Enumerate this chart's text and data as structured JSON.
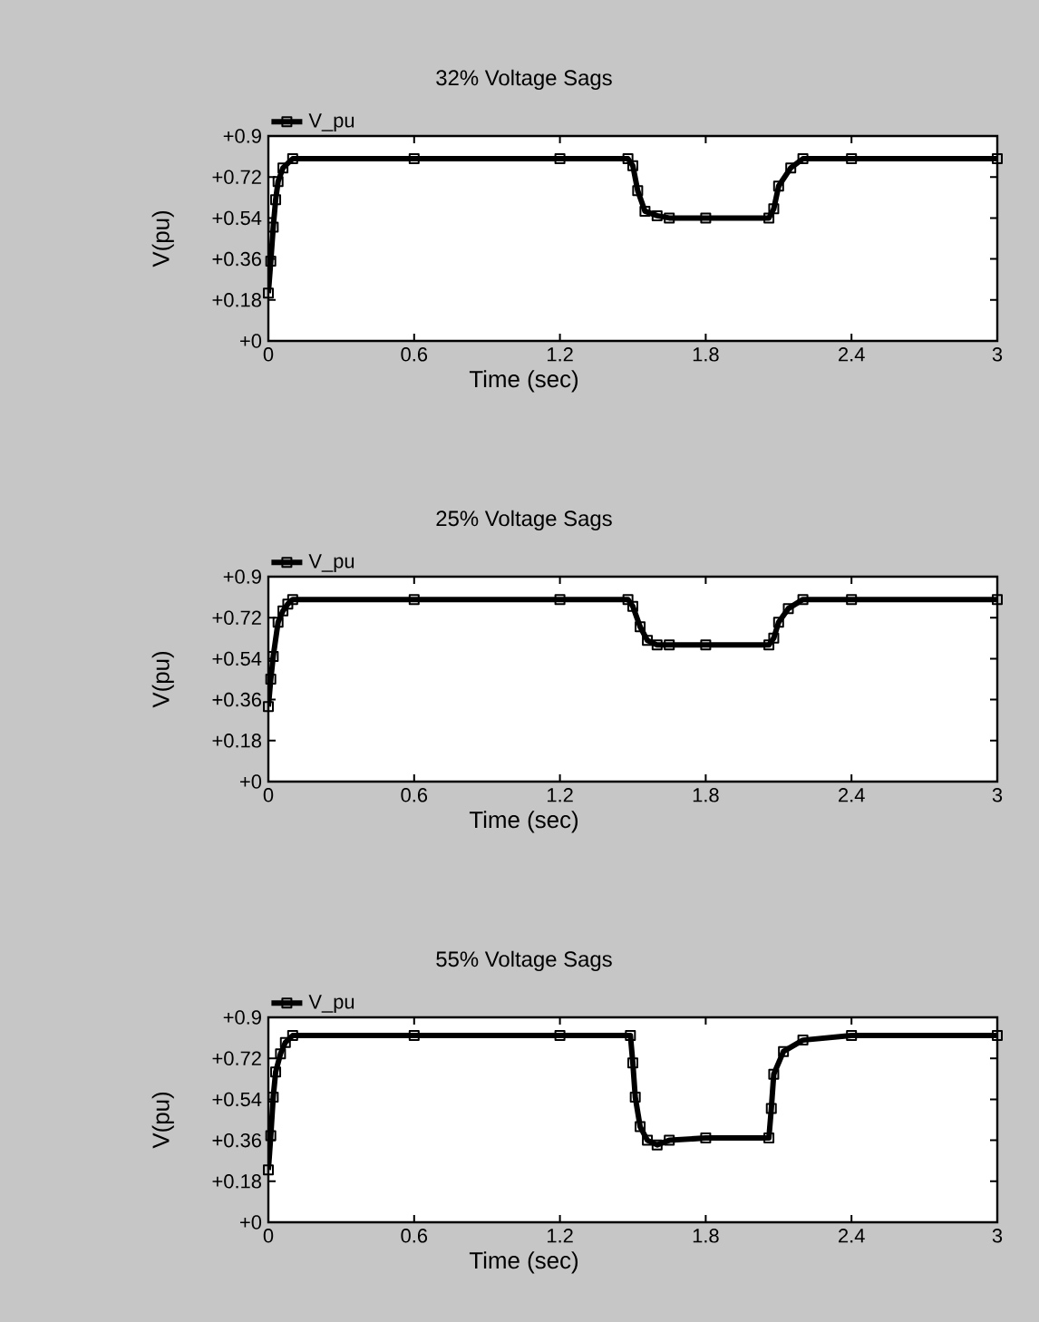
{
  "chart_data": [
    {
      "type": "line",
      "title": "32% Voltage Sags",
      "xlabel": "Time (sec)",
      "ylabel": "V(pu)",
      "xlim": [
        0,
        3
      ],
      "ylim": [
        0,
        0.9
      ],
      "xticks": [
        0,
        0.6,
        1.2,
        1.8,
        2.4,
        3
      ],
      "yticks": [
        {
          "value": 0,
          "label": "+0"
        },
        {
          "value": 0.18,
          "label": "+0.18"
        },
        {
          "value": 0.36,
          "label": "+0.36"
        },
        {
          "value": 0.54,
          "label": "+0.54"
        },
        {
          "value": 0.72,
          "label": "+0.72"
        },
        {
          "value": 0.9,
          "label": "+0.9"
        }
      ],
      "legend": "top left",
      "marker": "square",
      "series": [
        {
          "name": "V_pu",
          "color": "#000000",
          "x": [
            0,
            0.01,
            0.02,
            0.03,
            0.04,
            0.06,
            0.1,
            0.6,
            1.2,
            1.48,
            1.5,
            1.52,
            1.55,
            1.6,
            1.65,
            1.8,
            2.06,
            2.08,
            2.1,
            2.15,
            2.2,
            2.4,
            3
          ],
          "values": [
            0.21,
            0.35,
            0.5,
            0.62,
            0.7,
            0.76,
            0.8,
            0.8,
            0.8,
            0.8,
            0.77,
            0.66,
            0.57,
            0.55,
            0.54,
            0.54,
            0.54,
            0.58,
            0.68,
            0.76,
            0.8,
            0.8,
            0.8
          ]
        }
      ]
    },
    {
      "type": "line",
      "title": "25% Voltage Sags",
      "xlabel": "Time (sec)",
      "ylabel": "V(pu)",
      "xlim": [
        0,
        3
      ],
      "ylim": [
        0,
        0.9
      ],
      "xticks": [
        0,
        0.6,
        1.2,
        1.8,
        2.4,
        3
      ],
      "yticks": [
        {
          "value": 0,
          "label": "+0"
        },
        {
          "value": 0.18,
          "label": "+0.18"
        },
        {
          "value": 0.36,
          "label": "+0.36"
        },
        {
          "value": 0.54,
          "label": "+0.54"
        },
        {
          "value": 0.72,
          "label": "+0.72"
        },
        {
          "value": 0.9,
          "label": "+0.9"
        }
      ],
      "legend": "top left",
      "marker": "square",
      "series": [
        {
          "name": "V_pu",
          "color": "#000000",
          "x": [
            0,
            0.01,
            0.02,
            0.04,
            0.06,
            0.08,
            0.1,
            0.6,
            1.2,
            1.48,
            1.5,
            1.53,
            1.56,
            1.6,
            1.65,
            1.8,
            2.06,
            2.08,
            2.1,
            2.14,
            2.2,
            2.4,
            3
          ],
          "values": [
            0.33,
            0.45,
            0.55,
            0.7,
            0.75,
            0.78,
            0.8,
            0.8,
            0.8,
            0.8,
            0.77,
            0.68,
            0.62,
            0.6,
            0.6,
            0.6,
            0.6,
            0.63,
            0.7,
            0.76,
            0.8,
            0.8,
            0.8
          ]
        }
      ]
    },
    {
      "type": "line",
      "title": "55% Voltage Sags",
      "xlabel": "Time (sec)",
      "ylabel": "V(pu)",
      "xlim": [
        0,
        3
      ],
      "ylim": [
        0,
        0.9
      ],
      "xticks": [
        0,
        0.6,
        1.2,
        1.8,
        2.4,
        3
      ],
      "yticks": [
        {
          "value": 0,
          "label": "+0"
        },
        {
          "value": 0.18,
          "label": "+0.18"
        },
        {
          "value": 0.36,
          "label": "+0.36"
        },
        {
          "value": 0.54,
          "label": "+0.54"
        },
        {
          "value": 0.72,
          "label": "+0.72"
        },
        {
          "value": 0.9,
          "label": "+0.9"
        }
      ],
      "legend": "top left",
      "marker": "square",
      "series": [
        {
          "name": "V_pu",
          "color": "#000000",
          "x": [
            0,
            0.01,
            0.02,
            0.03,
            0.05,
            0.07,
            0.1,
            0.6,
            1.2,
            1.49,
            1.5,
            1.51,
            1.53,
            1.56,
            1.6,
            1.65,
            1.8,
            2.06,
            2.07,
            2.08,
            2.12,
            2.2,
            2.4,
            3
          ],
          "values": [
            0.23,
            0.38,
            0.55,
            0.66,
            0.74,
            0.79,
            0.82,
            0.82,
            0.82,
            0.82,
            0.7,
            0.55,
            0.42,
            0.36,
            0.34,
            0.36,
            0.37,
            0.37,
            0.5,
            0.65,
            0.75,
            0.8,
            0.82,
            0.82
          ]
        }
      ]
    }
  ]
}
